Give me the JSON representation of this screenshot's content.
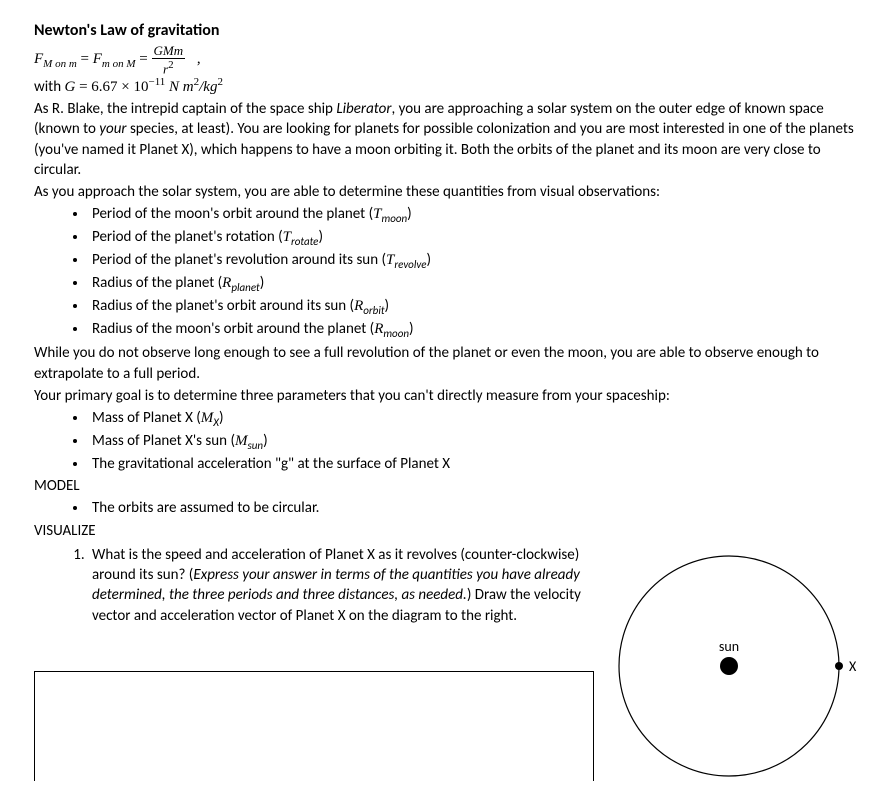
{
  "title": "Newton's Law of gravitation",
  "formula": {
    "lhs1_F": "F",
    "lhs1_sub": "M on m",
    "lhs2_F": "F",
    "lhs2_sub": "m on M",
    "frac_num": "GMm",
    "frac_den": "r",
    "frac_den_sup": "2",
    "comma": ","
  },
  "g_line": {
    "prefix": "with ",
    "G": "G",
    "eq": " = 6.67 × 10",
    "exp": "−11",
    "units_pre": " N m",
    "units_sup1": "2",
    "units_mid": "/kg",
    "units_sup2": "2"
  },
  "intro_pre": "As R. Blake, the intrepid captain of the space ship ",
  "intro_ship": "Liberator",
  "intro_mid1": ", you are approaching a solar system on the outer edge of known space (known to ",
  "intro_your": "your",
  "intro_mid2": " species, at least). You are looking for planets for possible colonization and you are most interested in one of the planets (you've named it Planet X), which happens to have a moon orbiting it. Both the orbits of the planet and its moon are very close to circular.",
  "obs_line": "As you approach the solar system, you are able to determine these quantities from visual observations:",
  "bullets_obs": [
    {
      "text": "Period of the moon's orbit around the planet (",
      "var": "T",
      "sub": "moon",
      "suffix": ")"
    },
    {
      "text": "Period of the planet's rotation (",
      "var": "T",
      "sub": "rotate",
      "suffix": ")"
    },
    {
      "text": "Period of the planet's revolution around its sun (",
      "var": "T",
      "sub": "revolve",
      "suffix": ")"
    },
    {
      "text": "Radius of the planet (",
      "var": "R",
      "sub": "planet",
      "suffix": ")"
    },
    {
      "text": "Radius of the planet's orbit around its sun (",
      "var": "R",
      "sub": "orbit",
      "suffix": ")"
    },
    {
      "text": "Radius of the moon's orbit around the planet (",
      "var": "R",
      "sub": "moon",
      "suffix": ")"
    }
  ],
  "extrap_line": "While you do not observe long enough to see a full revolution of the planet or even the moon, you are able to observe enough to extrapolate to a full period.",
  "goal_line": "Your primary goal is to determine three parameters that you can't directly measure from your spaceship:",
  "bullets_goal": [
    {
      "text": "Mass of Planet X (",
      "var": "M",
      "sub": "X",
      "suffix": ")"
    },
    {
      "text": "Mass of Planet X's sun (",
      "var": "M",
      "sub": "sun",
      "suffix": ")"
    },
    {
      "text": "The gravitational acceleration \"g\" at the surface of Planet X",
      "var": "",
      "sub": "",
      "suffix": ""
    }
  ],
  "model_heading": "MODEL",
  "model_bullet": "The orbits are assumed to be circular.",
  "visualize_heading": "VISUALIZE",
  "q1_pre": "What is the speed and acceleration of Planet X as it revolves (counter-clockwise) around its sun? (",
  "q1_italic": "Express your answer in terms of the quantities you have already determined, the three periods and three distances, as needed.",
  "q1_post": ") Draw the velocity vector and acceleration vector of Planet X on the diagram to the right.",
  "diagram": {
    "sun_label": "sun",
    "planet_label": "X",
    "orbit_radius": 110,
    "sun_dot_radius": 9,
    "planet_dot_radius": 4,
    "stroke_color": "#000000",
    "bg_color": "#ffffff"
  }
}
